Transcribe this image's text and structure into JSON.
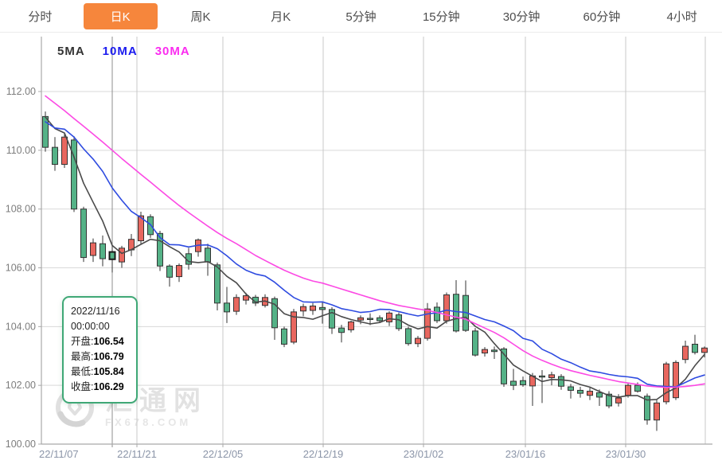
{
  "tabs": {
    "items": [
      {
        "label": "分时",
        "active": false
      },
      {
        "label": "日K",
        "active": true
      },
      {
        "label": "周K",
        "active": false
      },
      {
        "label": "月K",
        "active": false
      },
      {
        "label": "5分钟",
        "active": false
      },
      {
        "label": "15分钟",
        "active": false
      },
      {
        "label": "30分钟",
        "active": false
      },
      {
        "label": "60分钟",
        "active": false
      },
      {
        "label": "4小时",
        "active": false
      }
    ],
    "active_color": "#F6863C"
  },
  "legend": {
    "items": [
      {
        "label": "5MA",
        "color": "#333333"
      },
      {
        "label": "10MA",
        "color": "#1B1BEF"
      },
      {
        "label": "30MA",
        "color": "#FB2CF0"
      }
    ]
  },
  "tooltip": {
    "date": "2022/11/16",
    "time": "00:00:00",
    "rows": [
      {
        "label": "开盘",
        "value": "106.54"
      },
      {
        "label": "最高",
        "value": "106.79"
      },
      {
        "label": "最低",
        "value": "105.84"
      },
      {
        "label": "收盘",
        "value": "106.29"
      }
    ],
    "border_color": "#3FA876"
  },
  "watermark": {
    "title": "汇通网",
    "subtitle": "FX678.COM"
  },
  "chart_data": {
    "type": "candlestick",
    "title": "",
    "ylim": [
      100,
      112
    ],
    "y_ticks": [
      "112.00",
      "110.00",
      "108.00",
      "106.00",
      "104.00",
      "102.00",
      "100.00"
    ],
    "x_tick_labels": [
      "22/11/07",
      "22/11/21",
      "22/12/05",
      "22/12/19",
      "23/01/02",
      "23/01/16",
      "23/01/30"
    ],
    "grid": true,
    "legend_position": "top-left",
    "selected_index": 7,
    "selected_date": "2022/11/16",
    "candles_ohlc": [
      [
        111.15,
        111.32,
        109.95,
        110.1
      ],
      [
        110.1,
        110.45,
        109.3,
        109.52
      ],
      [
        109.52,
        110.6,
        109.4,
        110.45
      ],
      [
        110.35,
        110.48,
        107.9,
        108.0
      ],
      [
        108.0,
        108.08,
        106.2,
        106.35
      ],
      [
        106.42,
        107.0,
        106.2,
        106.85
      ],
      [
        106.82,
        107.1,
        106.05,
        106.31
      ],
      [
        106.54,
        106.79,
        105.84,
        106.29
      ],
      [
        106.2,
        106.75,
        106.0,
        106.67
      ],
      [
        106.61,
        107.15,
        106.4,
        106.97
      ],
      [
        106.92,
        107.91,
        106.82,
        107.77
      ],
      [
        107.74,
        107.82,
        107.02,
        107.13
      ],
      [
        107.17,
        107.26,
        105.89,
        106.06
      ],
      [
        106.06,
        106.12,
        105.36,
        105.68
      ],
      [
        105.7,
        106.15,
        105.52,
        106.08
      ],
      [
        106.48,
        106.68,
        105.94,
        106.12
      ],
      [
        106.55,
        107.0,
        106.38,
        106.95
      ],
      [
        106.67,
        106.82,
        105.73,
        106.2
      ],
      [
        106.1,
        106.18,
        104.55,
        104.8
      ],
      [
        104.8,
        105.35,
        104.12,
        104.5
      ],
      [
        104.52,
        105.1,
        104.4,
        104.99
      ],
      [
        104.9,
        105.15,
        104.75,
        105.05
      ],
      [
        105.0,
        105.08,
        104.7,
        104.8
      ],
      [
        104.72,
        105.1,
        104.65,
        104.99
      ],
      [
        104.95,
        105.02,
        103.55,
        103.96
      ],
      [
        103.92,
        104.0,
        103.3,
        103.4
      ],
      [
        103.47,
        104.6,
        103.4,
        104.5
      ],
      [
        104.53,
        104.78,
        104.35,
        104.68
      ],
      [
        104.55,
        104.8,
        104.4,
        104.7
      ],
      [
        104.65,
        104.86,
        104.1,
        104.58
      ],
      [
        104.58,
        104.66,
        103.75,
        103.95
      ],
      [
        103.95,
        104.06,
        103.46,
        103.8
      ],
      [
        103.89,
        104.2,
        103.8,
        104.16
      ],
      [
        104.22,
        104.38,
        104.08,
        104.3
      ],
      [
        104.28,
        104.45,
        104.05,
        104.24
      ],
      [
        104.3,
        104.38,
        104.15,
        104.2
      ],
      [
        104.16,
        104.52,
        104.02,
        104.46
      ],
      [
        104.4,
        104.48,
        103.85,
        103.93
      ],
      [
        103.93,
        104.0,
        103.35,
        103.42
      ],
      [
        103.42,
        103.68,
        103.3,
        103.6
      ],
      [
        103.6,
        104.8,
        103.52,
        104.6
      ],
      [
        104.66,
        104.82,
        104.12,
        104.2
      ],
      [
        104.2,
        105.16,
        104.1,
        105.08
      ],
      [
        105.1,
        105.58,
        103.8,
        103.85
      ],
      [
        105.06,
        105.57,
        103.82,
        103.87
      ],
      [
        103.85,
        103.95,
        102.98,
        103.03
      ],
      [
        103.1,
        103.3,
        102.98,
        103.22
      ],
      [
        103.2,
        103.32,
        102.9,
        103.15
      ],
      [
        103.24,
        103.3,
        101.95,
        102.05
      ],
      [
        102.14,
        102.56,
        101.84,
        102.0
      ],
      [
        102.16,
        102.3,
        101.95,
        102.02
      ],
      [
        101.98,
        102.42,
        101.3,
        102.32
      ],
      [
        102.3,
        102.52,
        101.4,
        102.28
      ],
      [
        102.26,
        102.46,
        102.0,
        102.36
      ],
      [
        102.3,
        102.38,
        101.85,
        101.97
      ],
      [
        101.95,
        102.05,
        101.55,
        101.83
      ],
      [
        101.83,
        101.95,
        101.58,
        101.73
      ],
      [
        101.66,
        101.92,
        101.5,
        101.8
      ],
      [
        101.75,
        101.86,
        101.3,
        101.6
      ],
      [
        101.7,
        101.8,
        101.22,
        101.3
      ],
      [
        101.4,
        101.7,
        101.28,
        101.57
      ],
      [
        101.66,
        102.08,
        101.58,
        102.0
      ],
      [
        102.0,
        102.1,
        101.75,
        101.8
      ],
      [
        101.63,
        101.72,
        100.66,
        100.82
      ],
      [
        100.82,
        101.52,
        100.45,
        101.4
      ],
      [
        101.44,
        102.8,
        101.35,
        102.73
      ],
      [
        101.58,
        102.85,
        101.5,
        102.78
      ],
      [
        102.88,
        103.52,
        102.75,
        103.33
      ],
      [
        103.4,
        103.72,
        103.05,
        103.12
      ],
      [
        103.12,
        103.32,
        102.95,
        103.27
      ]
    ],
    "series": [
      {
        "name": "5MA",
        "color": "#4A4A4A",
        "values": [
          111.13,
          110.74,
          110.59,
          109.77,
          108.88,
          108.23,
          107.59,
          106.76,
          106.49,
          106.62,
          106.8,
          106.97,
          106.92,
          106.72,
          106.54,
          106.21,
          106.18,
          106.21,
          106.03,
          105.71,
          105.49,
          105.11,
          104.83,
          104.87,
          104.76,
          104.44,
          104.33,
          104.31,
          104.25,
          104.37,
          104.48,
          104.34,
          104.24,
          104.16,
          104.09,
          104.14,
          104.27,
          104.23,
          104.05,
          103.92,
          104.0,
          103.95,
          104.18,
          104.27,
          104.32,
          104.01,
          103.81,
          103.42,
          103.06,
          102.69,
          102.49,
          102.31,
          102.13,
          102.2,
          102.19,
          102.15,
          102.03,
          101.94,
          101.79,
          101.65,
          101.6,
          101.65,
          101.65,
          101.5,
          101.52,
          101.75,
          101.91,
          102.21,
          102.67,
          103.05
        ]
      },
      {
        "name": "10MA",
        "color": "#2E4BE0",
        "values": [
          110.97,
          110.76,
          110.72,
          110.45,
          110.05,
          109.7,
          109.28,
          108.72,
          108.3,
          107.92,
          107.71,
          107.47,
          107.03,
          106.79,
          106.78,
          106.71,
          106.77,
          106.78,
          106.65,
          106.41,
          106.13,
          105.92,
          105.79,
          105.72,
          105.51,
          105.24,
          104.99,
          104.84,
          104.83,
          104.84,
          104.74,
          104.61,
          104.55,
          104.48,
          104.51,
          104.59,
          104.58,
          104.51,
          104.43,
          104.36,
          104.43,
          104.47,
          104.56,
          104.51,
          104.48,
          104.36,
          104.24,
          104.16,
          104.02,
          103.86,
          103.6,
          103.51,
          103.23,
          103.08,
          102.89,
          102.77,
          102.62,
          102.49,
          102.44,
          102.37,
          102.32,
          102.29,
          102.24,
          102.04,
          101.98,
          101.96,
          101.95,
          102.1,
          102.25,
          102.35
        ]
      },
      {
        "name": "30MA",
        "color": "#FC4AE4",
        "values": [
          111.85,
          111.6,
          111.35,
          111.08,
          110.82,
          110.55,
          110.28,
          110.0,
          109.72,
          109.45,
          109.18,
          108.92,
          108.65,
          108.38,
          108.12,
          107.88,
          107.65,
          107.42,
          107.2,
          107.0,
          106.82,
          106.62,
          106.42,
          106.25,
          106.08,
          105.92,
          105.78,
          105.65,
          105.55,
          105.48,
          105.38,
          105.28,
          105.18,
          105.08,
          104.98,
          104.88,
          104.8,
          104.72,
          104.66,
          104.6,
          104.55,
          104.48,
          104.4,
          104.32,
          104.25,
          104.1,
          103.95,
          103.8,
          103.62,
          103.4,
          103.18,
          103.0,
          102.85,
          102.72,
          102.6,
          102.5,
          102.42,
          102.34,
          102.27,
          102.2,
          102.13,
          102.08,
          102.03,
          101.98,
          101.95,
          101.93,
          101.94,
          101.96,
          102.0,
          102.05
        ]
      }
    ],
    "colors": {
      "up": "#E8675F",
      "down": "#55B287",
      "candle_stroke": "#333333",
      "grid_h": "#D9D9D9",
      "grid_v": "#C9C9C9",
      "axis": "#A9A9A9",
      "crosshair": "#8C8C8C",
      "y_label": "#7D7D7D",
      "x_label": "#8B95A8",
      "selected_outline": "#1A1A1A"
    }
  }
}
